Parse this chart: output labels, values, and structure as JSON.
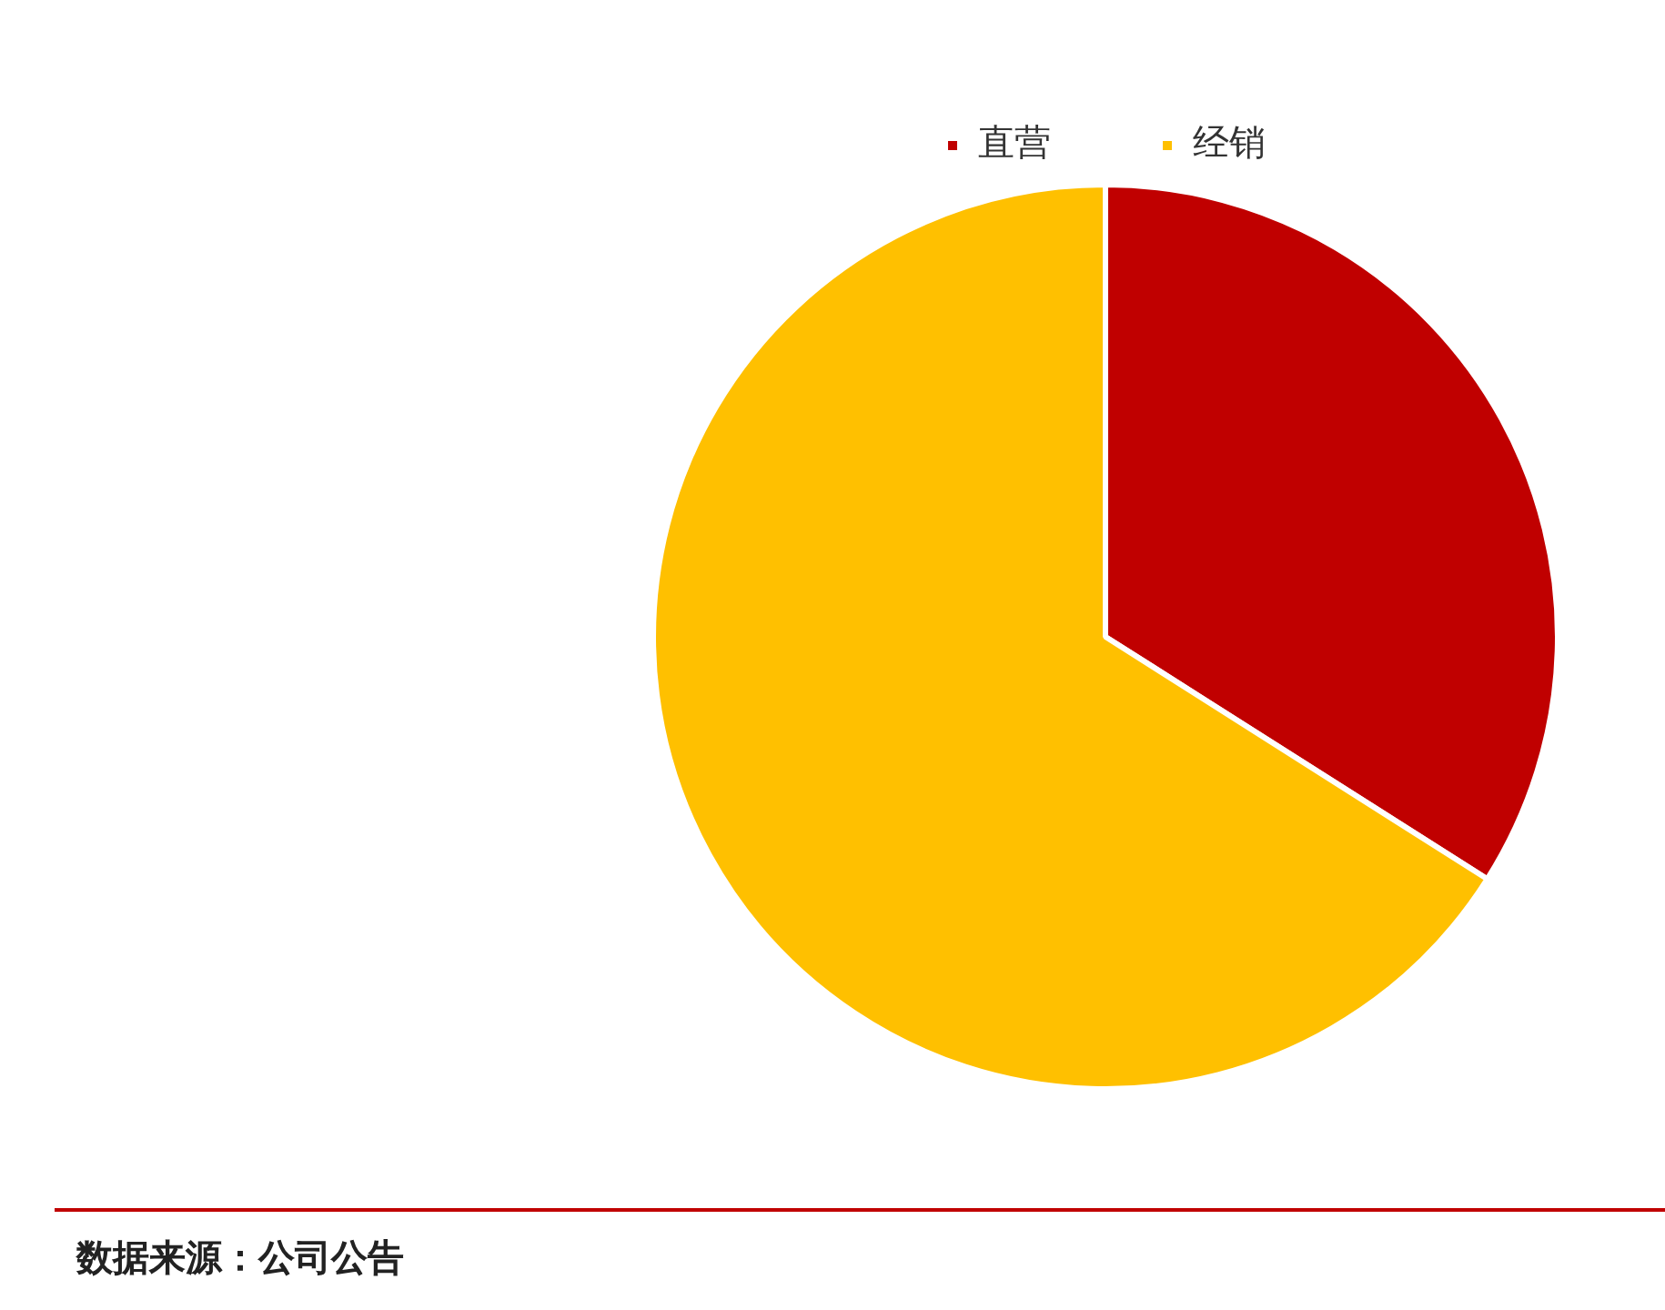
{
  "chart_data": {
    "type": "pie",
    "categories": [
      "直营",
      "经销"
    ],
    "values": [
      34,
      66
    ],
    "colors": [
      "#c00000",
      "#ffc000"
    ],
    "legend": "top",
    "annotations": [
      "数据来源：公司公告"
    ]
  }
}
